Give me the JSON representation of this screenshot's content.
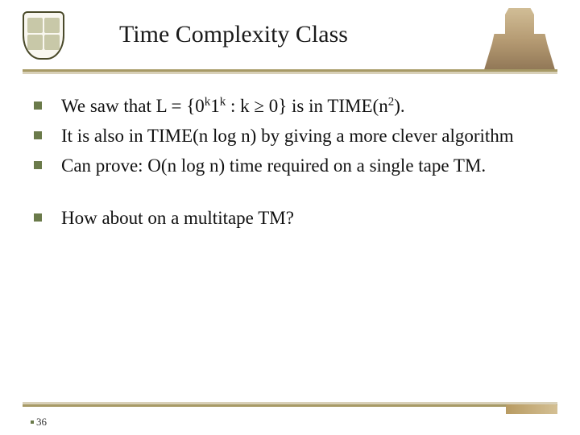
{
  "title": "Time Complexity Class",
  "bullets": {
    "b1_pre": "We saw that L = {0",
    "b1_sup1": "k",
    "b1_mid1": "1",
    "b1_sup2": "k",
    "b1_mid2": " : k ≥ 0} is in TIME(n",
    "b1_sup3": "2",
    "b1_post": ").",
    "b2": "It is also in TIME(n log n) by giving a more clever algorithm",
    "b3": "Can prove: O(n log n) time required on a single tape TM.",
    "b4": "How about on a multitape TM?"
  },
  "page_number": "36",
  "colors": {
    "accent_line": "#a79a66",
    "bullet_square": "#6a7a4a",
    "text": "#111111",
    "background": "#ffffff"
  }
}
